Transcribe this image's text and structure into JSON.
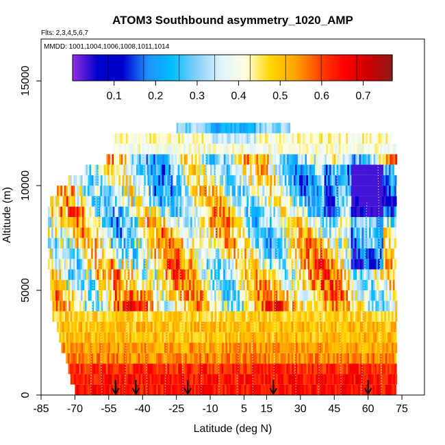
{
  "chart_data": {
    "type": "heatmap",
    "title": "ATOM3 Southbound asymmetry_1020_AMP",
    "subtitle_flights": "Flts: 2,3,4,5,6,7",
    "subtitle_dates": "MMDD: 1001,1004,1006,1008,1011,1014",
    "xlabel": "Latitude (deg N)",
    "ylabel": "Altitude (m)",
    "xlim": [
      -85,
      85
    ],
    "ylim": [
      0,
      17000
    ],
    "x_ticks": [
      -85,
      -70,
      -55,
      -40,
      -25,
      -10,
      5,
      15,
      30,
      45,
      60,
      75
    ],
    "y_ticks": [
      0,
      5000,
      10000,
      15000
    ],
    "colorbar": {
      "min": 0.0,
      "max": 0.77,
      "ticks": [
        0.1,
        0.2,
        0.3,
        0.4,
        0.5,
        0.6,
        0.7
      ],
      "colors": [
        "#8b2be2",
        "#0000cd",
        "#0000cd",
        "#1e90ff",
        "#00bfff",
        "#87cefa",
        "#e0f4ff",
        "#ffffe0",
        "#ffd700",
        "#ffa500",
        "#ff4500",
        "#ff0000",
        "#cd0000",
        "#8b1a1a"
      ]
    },
    "arrows_latitude": [
      -52,
      -43,
      -20,
      18,
      60
    ],
    "altitude_bins_m": [
      0,
      500,
      1000,
      1500,
      2000,
      2500,
      3000,
      3500,
      4000,
      4500,
      5000,
      5500,
      6000,
      6500,
      7000,
      7500,
      8000,
      8500,
      9000,
      9500,
      10000,
      10500,
      11000,
      11500,
      12000,
      12500
    ],
    "latitude_coverage_by_bin": [
      [
        -70,
        72
      ],
      [
        -72,
        72
      ],
      [
        -73,
        72
      ],
      [
        -74,
        72
      ],
      [
        -76,
        72
      ],
      [
        -77,
        72
      ],
      [
        -78,
        72
      ],
      [
        -80,
        72
      ],
      [
        -80,
        72
      ],
      [
        -81,
        72
      ],
      [
        -81,
        72
      ],
      [
        -81,
        72
      ],
      [
        -82,
        72
      ],
      [
        -82,
        72
      ],
      [
        -82,
        72
      ],
      [
        -82,
        72
      ],
      [
        -82,
        72
      ],
      [
        -82,
        72
      ],
      [
        -81,
        72
      ],
      [
        -78,
        72
      ],
      [
        -73,
        72
      ],
      [
        -66,
        72
      ],
      [
        -56,
        72
      ],
      [
        -53,
        72
      ],
      [
        -53,
        70
      ],
      [
        -25,
        25
      ]
    ],
    "mean_amp_by_bin": [
      0.6,
      0.6,
      0.58,
      0.55,
      0.53,
      0.5,
      0.5,
      0.48,
      0.47,
      0.46,
      0.45,
      0.44,
      0.43,
      0.42,
      0.42,
      0.4,
      0.4,
      0.38,
      0.36,
      0.35,
      0.35,
      0.35,
      0.37,
      0.4,
      0.42,
      0.3
    ],
    "sample_trace_latitudes": [
      -63,
      -58,
      -48,
      -38,
      -30,
      -22,
      -14,
      -6,
      2,
      9,
      18,
      28,
      38,
      48,
      57,
      66
    ]
  }
}
